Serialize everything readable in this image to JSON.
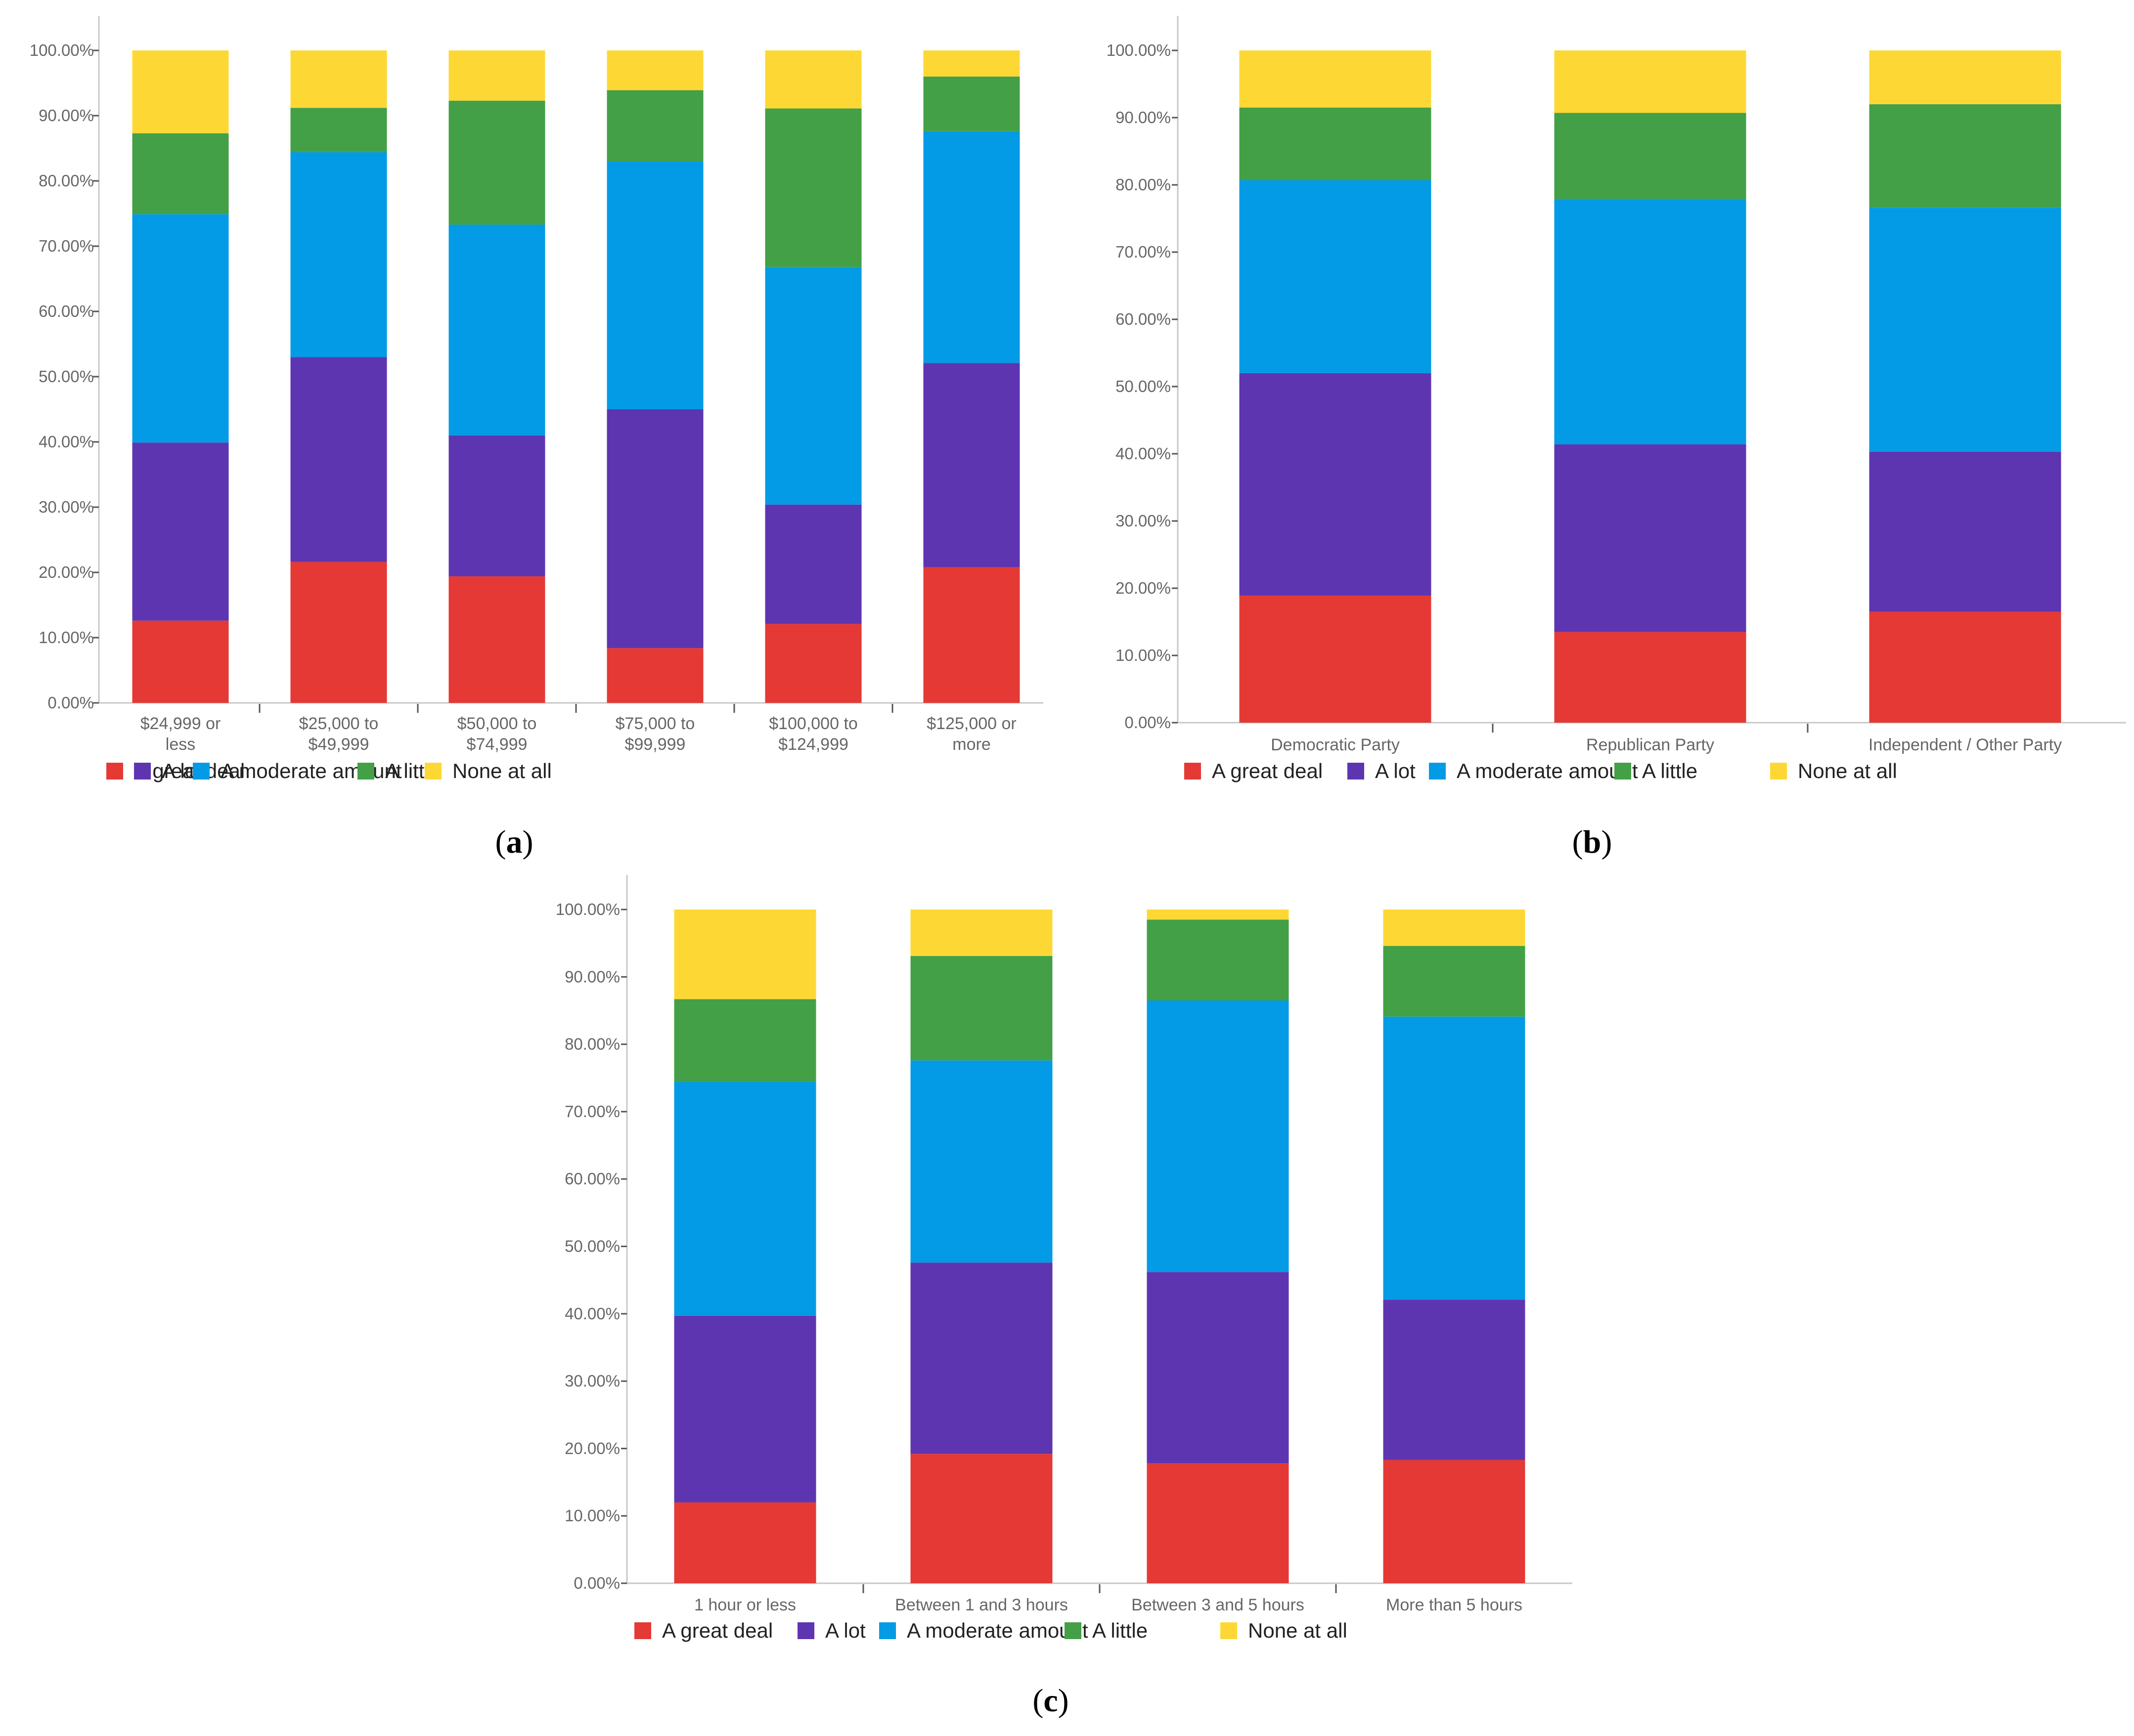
{
  "colors": {
    "A great deal": "#e53935",
    "A lot": "#5e35b1",
    "A moderate amount": "#039be5",
    "A little": "#43a047",
    "None at all": "#fdd835"
  },
  "chart_data": [
    {
      "panel": "a",
      "type": "bar",
      "stacked": true,
      "ylim": [
        0,
        100
      ],
      "yticks": [
        "0.00%",
        "10.00%",
        "20.00%",
        "30.00%",
        "40.00%",
        "50.00%",
        "60.00%",
        "70.00%",
        "80.00%",
        "90.00%",
        "100.00%"
      ],
      "categories": [
        [
          "$24,999 or",
          "less"
        ],
        [
          "$25,000 to",
          "$49,999"
        ],
        [
          "$50,000 to",
          "$74,999"
        ],
        [
          "$75,000 to",
          "$99,999"
        ],
        [
          "$100,000 to",
          "$124,999"
        ],
        [
          "$125,000 or",
          "more"
        ]
      ],
      "series": [
        {
          "name": "A great deal",
          "values": [
            12.6,
            21.6,
            19.4,
            8.4,
            12.1,
            20.8
          ]
        },
        {
          "name": "A lot",
          "values": [
            27.3,
            31.4,
            21.6,
            36.6,
            18.3,
            31.3
          ]
        },
        {
          "name": "A moderate amount",
          "values": [
            35.0,
            31.4,
            32.3,
            38.0,
            36.4,
            35.5
          ]
        },
        {
          "name": "A little",
          "values": [
            12.4,
            6.8,
            19.0,
            10.9,
            24.3,
            8.4
          ]
        },
        {
          "name": "None at all",
          "values": [
            12.7,
            8.8,
            7.7,
            6.1,
            8.9,
            4.0
          ]
        }
      ],
      "legend": [
        "A great deal",
        "A lot",
        "A moderate amount",
        "A little",
        "None at all"
      ],
      "legend_position": "bottom-left",
      "caption_letter": "a",
      "caption_open": "(",
      "caption_close": ")"
    },
    {
      "panel": "b",
      "type": "bar",
      "stacked": true,
      "ylim": [
        0,
        100
      ],
      "yticks": [
        "0.00%",
        "10.00%",
        "20.00%",
        "30.00%",
        "40.00%",
        "50.00%",
        "60.00%",
        "70.00%",
        "80.00%",
        "90.00%",
        "100.00%"
      ],
      "categories": [
        [
          "Democratic Party"
        ],
        [
          "Republican Party"
        ],
        [
          "Independent / Other Party"
        ]
      ],
      "series": [
        {
          "name": "A great deal",
          "values": [
            18.9,
            13.5,
            16.5
          ]
        },
        {
          "name": "A lot",
          "values": [
            33.1,
            27.9,
            23.8
          ]
        },
        {
          "name": "A moderate amount",
          "values": [
            28.7,
            36.5,
            36.3
          ]
        },
        {
          "name": "A little",
          "values": [
            10.8,
            12.8,
            15.4
          ]
        },
        {
          "name": "None at all",
          "values": [
            8.5,
            9.3,
            8.0
          ]
        }
      ],
      "legend": [
        "A great deal",
        "A lot",
        "A moderate amount",
        "A little",
        "None at all"
      ],
      "legend_position": "bottom-left",
      "caption_letter": "b",
      "caption_open": "(",
      "caption_close": ")"
    },
    {
      "panel": "c",
      "type": "bar",
      "stacked": true,
      "ylim": [
        0,
        100
      ],
      "yticks": [
        "0.00%",
        "10.00%",
        "20.00%",
        "30.00%",
        "40.00%",
        "50.00%",
        "60.00%",
        "70.00%",
        "80.00%",
        "90.00%",
        "100.00%"
      ],
      "categories": [
        [
          "1 hour or less"
        ],
        [
          "Between 1 and 3 hours"
        ],
        [
          "Between 3 and 5 hours"
        ],
        [
          "More than 5 hours"
        ]
      ],
      "series": [
        {
          "name": "A great deal",
          "values": [
            12.0,
            19.2,
            17.8,
            18.3
          ]
        },
        {
          "name": "A lot",
          "values": [
            27.7,
            28.4,
            28.4,
            23.8
          ]
        },
        {
          "name": "A moderate amount",
          "values": [
            34.7,
            30.0,
            40.3,
            42.0
          ]
        },
        {
          "name": "A little",
          "values": [
            12.3,
            15.5,
            12.0,
            10.5
          ]
        },
        {
          "name": "None at all",
          "values": [
            13.3,
            6.9,
            1.5,
            5.4
          ]
        }
      ],
      "legend": [
        "A great deal",
        "A lot",
        "A moderate amount",
        "A little",
        "None at all"
      ],
      "legend_position": "bottom-left",
      "caption_letter": "c",
      "caption_open": "(",
      "caption_close": ")"
    }
  ]
}
